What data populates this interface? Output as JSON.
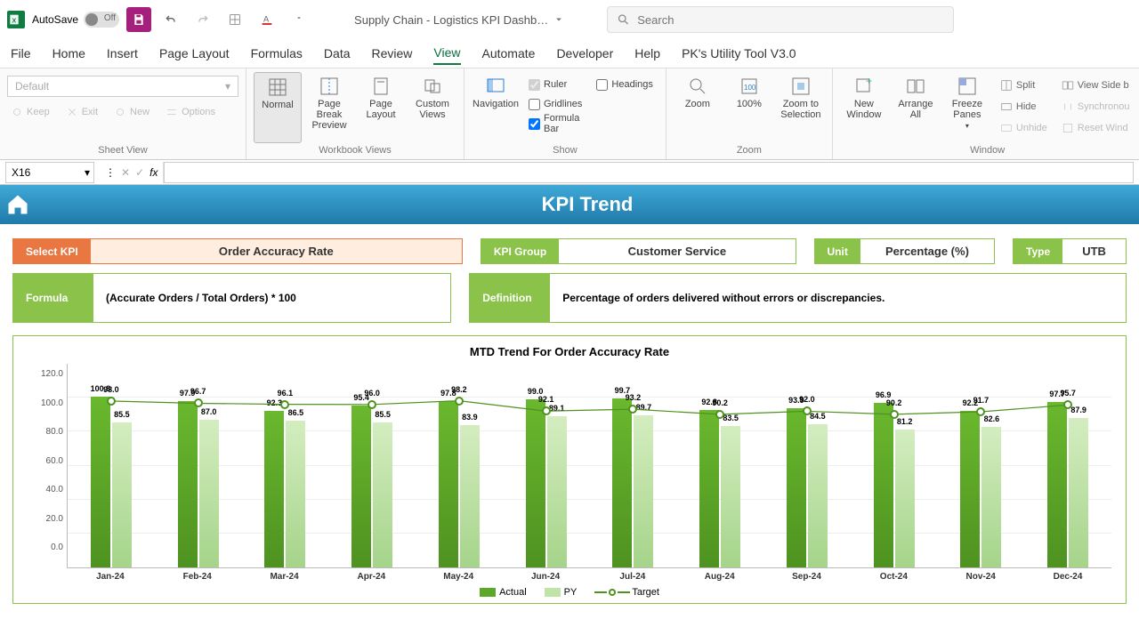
{
  "titlebar": {
    "autosave_label": "AutoSave",
    "autosave_state": "Off",
    "doc_name": "Supply Chain - Logistics KPI Dashb…",
    "search_placeholder": "Search"
  },
  "ribbon": {
    "tabs": [
      "File",
      "Home",
      "Insert",
      "Page Layout",
      "Formulas",
      "Data",
      "Review",
      "View",
      "Automate",
      "Developer",
      "Help",
      "PK's Utility Tool V3.0"
    ],
    "active_tab": "View",
    "sheet_view": {
      "default": "Default",
      "keep": "Keep",
      "exit": "Exit",
      "new": "New",
      "options": "Options",
      "group_label": "Sheet View"
    },
    "workbook_views": {
      "normal": "Normal",
      "page_break": "Page Break Preview",
      "page_layout": "Page Layout",
      "custom": "Custom Views",
      "group_label": "Workbook Views"
    },
    "show": {
      "navigation": "Navigation",
      "ruler": "Ruler",
      "gridlines": "Gridlines",
      "formula_bar": "Formula Bar",
      "headings": "Headings",
      "group_label": "Show"
    },
    "zoom": {
      "zoom": "Zoom",
      "hundred": "100%",
      "selection": "Zoom to Selection",
      "group_label": "Zoom"
    },
    "window": {
      "new_window": "New Window",
      "arrange": "Arrange All",
      "freeze": "Freeze Panes",
      "split": "Split",
      "hide": "Hide",
      "unhide": "Unhide",
      "side": "View Side b",
      "sync": "Synchronou",
      "reset": "Reset Wind",
      "group_label": "Window"
    }
  },
  "formula_bar": {
    "name_box": "X16",
    "formula": ""
  },
  "header": {
    "title": "KPI Trend"
  },
  "selectors": {
    "kpi": {
      "label": "Select KPI",
      "value": "Order Accuracy Rate"
    },
    "group": {
      "label": "KPI Group",
      "value": "Customer Service"
    },
    "unit": {
      "label": "Unit",
      "value": "Percentage (%)"
    },
    "type": {
      "label": "Type",
      "value": "UTB"
    }
  },
  "info": {
    "formula": {
      "label": "Formula",
      "value": "(Accurate Orders / Total Orders) * 100"
    },
    "definition": {
      "label": "Definition",
      "value": "Percentage of orders delivered without errors or discrepancies."
    }
  },
  "chart": {
    "title": "MTD Trend For Order Accuracy Rate",
    "type": "bar+line",
    "ylim": [
      0,
      120
    ],
    "ytick_step": 20,
    "yticks": [
      "0.0",
      "20.0",
      "40.0",
      "60.0",
      "80.0",
      "100.0",
      "120.0"
    ],
    "colors": {
      "actual_bar": "#5ca829",
      "py_bar": "#c0e3a8",
      "target_line": "#4e9220",
      "grid": "#eeeeee",
      "axis": "#bbbbbb",
      "background": "#ffffff"
    },
    "bar_width": 0.7,
    "months": [
      "Jan-24",
      "Feb-24",
      "Mar-24",
      "Apr-24",
      "May-24",
      "Jun-24",
      "Jul-24",
      "Aug-24",
      "Sep-24",
      "Oct-24",
      "Nov-24",
      "Dec-24"
    ],
    "actual": [
      100.8,
      97.9,
      92.3,
      95.4,
      97.8,
      99.0,
      99.7,
      92.8,
      93.9,
      96.9,
      92.2,
      97.7
    ],
    "actual_labels": [
      "100.8",
      "97.9",
      "92.3",
      "95.4",
      "97.8",
      "99.0",
      "99.7",
      "92.8",
      "93.9",
      "96.9",
      "92.2",
      "97.7"
    ],
    "py": [
      85.5,
      87.0,
      86.5,
      85.5,
      83.9,
      89.1,
      89.7,
      83.5,
      84.5,
      81.2,
      82.6,
      87.9
    ],
    "py_labels": [
      "85.5",
      "87.0",
      "86.5",
      "85.5",
      "83.9",
      "89.1",
      "89.7",
      "83.5",
      "84.5",
      "81.2",
      "82.6",
      "87.9"
    ],
    "target": [
      98.0,
      96.7,
      96.1,
      96.0,
      98.2,
      92.1,
      93.2,
      90.2,
      92.0,
      90.2,
      91.7,
      95.7
    ],
    "target_labels": [
      "98.0",
      "96.7",
      "96.1",
      "96.0",
      "98.2",
      "92.1",
      "93.2",
      "90.2",
      "92.0",
      "90.2",
      "91.7",
      "95.7"
    ],
    "legend": {
      "actual": "Actual",
      "py": "PY",
      "target": "Target"
    }
  }
}
